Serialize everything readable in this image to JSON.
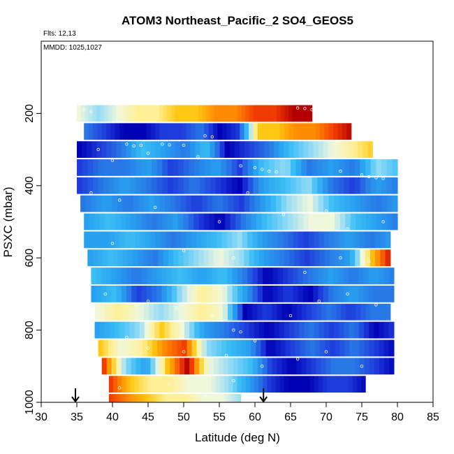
{
  "chart_data": {
    "type": "heatmap",
    "title": "ATOM3 Northeast_Pacific_2 SO4_GEOS5",
    "subtitle_flights": "Flts: 12,13",
    "subtitle_dates": "MMDD: 1025,1027",
    "xlabel": "Latitude (deg N)",
    "ylabel": "PSXC (mbar)",
    "xlim": [
      30,
      85
    ],
    "ylim": [
      1000,
      0
    ],
    "xticks": [
      "30",
      "35",
      "40",
      "45",
      "50",
      "55",
      "60",
      "65",
      "70",
      "75",
      "80",
      "85"
    ],
    "yticks": [
      "200",
      "400",
      "600",
      "800",
      "1000"
    ],
    "color_scale": [
      "#0000b4",
      "#1e3cdc",
      "#2878e6",
      "#28a0f0",
      "#3cbef5",
      "#96dcf5",
      "#f0f8dc",
      "#fff096",
      "#ffc814",
      "#ff8c00",
      "#f03c00",
      "#b40000"
    ],
    "markers": [
      {
        "lat": 34.8,
        "pressure": 1000
      },
      {
        "lat": 61.2,
        "pressure": 1000
      }
    ],
    "layers": [
      {
        "p": 200,
        "lat": [
          35.0,
          68.0
        ],
        "colors": [
          6,
          5,
          6,
          7,
          7,
          8,
          8,
          9,
          9,
          10,
          10,
          11,
          11
        ]
      },
      {
        "p": 250,
        "lat": [
          36.0,
          73.5
        ],
        "colors": [
          2,
          1,
          0,
          0,
          1,
          1,
          2,
          0,
          1,
          8,
          8,
          9,
          9,
          10,
          11
        ]
      },
      {
        "p": 300,
        "lat": [
          35.0,
          76.5
        ],
        "colors": [
          0,
          1,
          2,
          4,
          3,
          2,
          4,
          0,
          1,
          2,
          4,
          5,
          6,
          7,
          8
        ]
      },
      {
        "p": 350,
        "lat": [
          35.0,
          80.0
        ],
        "colors": [
          1,
          2,
          2,
          3,
          1,
          2,
          3,
          1,
          4,
          5,
          2,
          3,
          2,
          5,
          4
        ]
      },
      {
        "p": 400,
        "lat": [
          35.0,
          80.0
        ],
        "colors": [
          1,
          2,
          3,
          2,
          1,
          2,
          1,
          0,
          3,
          4,
          5,
          2,
          1,
          3,
          2
        ]
      },
      {
        "p": 450,
        "lat": [
          35.5,
          80.0
        ],
        "colors": [
          2,
          3,
          2,
          3,
          2,
          1,
          2,
          1,
          3,
          5,
          6,
          4,
          3,
          2,
          3
        ]
      },
      {
        "p": 500,
        "lat": [
          36.0,
          80.0
        ],
        "colors": [
          3,
          4,
          3,
          2,
          3,
          1,
          0,
          2,
          4,
          5,
          6,
          6,
          4,
          3,
          2
        ]
      },
      {
        "p": 550,
        "lat": [
          36.0,
          79.0
        ],
        "colors": [
          3,
          3,
          4,
          3,
          2,
          3,
          4,
          5,
          3,
          2,
          1,
          2,
          3,
          2,
          3
        ]
      },
      {
        "p": 600,
        "lat": [
          36.5,
          79.0
        ],
        "colors": [
          3,
          4,
          3,
          2,
          4,
          5,
          6,
          5,
          3,
          2,
          1,
          2,
          3,
          8,
          11
        ]
      },
      {
        "p": 650,
        "lat": [
          37.0,
          79.5
        ],
        "colors": [
          4,
          3,
          2,
          3,
          4,
          3,
          4,
          2,
          0,
          1,
          2,
          3,
          2,
          3,
          2
        ]
      },
      {
        "p": 700,
        "lat": [
          37.0,
          79.5
        ],
        "colors": [
          3,
          4,
          1,
          2,
          5,
          7,
          6,
          3,
          0,
          1,
          0,
          2,
          3,
          2,
          2
        ]
      },
      {
        "p": 750,
        "lat": [
          37.5,
          79.0
        ],
        "colors": [
          6,
          7,
          6,
          5,
          6,
          7,
          6,
          0,
          1,
          0,
          1,
          2,
          1,
          2,
          2
        ]
      },
      {
        "p": 800,
        "lat": [
          37.5,
          79.5
        ],
        "colors": [
          3,
          4,
          5,
          8,
          6,
          3,
          2,
          1,
          0,
          1,
          2,
          1,
          2,
          0,
          1
        ]
      },
      {
        "p": 850,
        "lat": [
          38.0,
          79.5
        ],
        "colors": [
          8,
          6,
          7,
          9,
          10,
          5,
          4,
          3,
          0,
          1,
          2,
          1,
          2,
          1,
          0
        ]
      },
      {
        "p": 900,
        "lat": [
          38.5,
          79.5
        ],
        "colors": [
          10,
          5,
          3,
          8,
          11,
          6,
          5,
          4,
          1,
          0,
          1,
          2,
          2,
          1,
          0
        ]
      },
      {
        "p": 950,
        "lat": [
          39.5,
          75.5
        ],
        "colors": [
          10,
          8,
          7,
          7,
          6,
          6,
          5,
          3,
          1,
          0,
          0,
          1,
          1,
          0
        ]
      },
      {
        "p": 1000,
        "lat": [
          39.5,
          58.0
        ],
        "colors": [
          10,
          9,
          8,
          7,
          7,
          6,
          6,
          5
        ]
      }
    ],
    "obs_points": [
      [
        36,
        190
      ],
      [
        37,
        195
      ],
      [
        42,
        285
      ],
      [
        43,
        290
      ],
      [
        44,
        288
      ],
      [
        47,
        285
      ],
      [
        48,
        287
      ],
      [
        50,
        288
      ],
      [
        53,
        262
      ],
      [
        54,
        265
      ],
      [
        66,
        185
      ],
      [
        67,
        186
      ],
      [
        68,
        190
      ],
      [
        69,
        185
      ],
      [
        70,
        188
      ],
      [
        38,
        300
      ],
      [
        40,
        330
      ],
      [
        45,
        310
      ],
      [
        52,
        320
      ],
      [
        58,
        345
      ],
      [
        60,
        350
      ],
      [
        61,
        355
      ],
      [
        62,
        360
      ],
      [
        63,
        362
      ],
      [
        72,
        360
      ],
      [
        75,
        370
      ],
      [
        76,
        375
      ],
      [
        77,
        378
      ],
      [
        78,
        380
      ],
      [
        37,
        420
      ],
      [
        41,
        440
      ],
      [
        46,
        460
      ],
      [
        55,
        500
      ],
      [
        59,
        420
      ],
      [
        64,
        480
      ],
      [
        70,
        470
      ],
      [
        73,
        520
      ],
      [
        78,
        500
      ],
      [
        40,
        560
      ],
      [
        50,
        580
      ],
      [
        57,
        600
      ],
      [
        67,
        640
      ],
      [
        72,
        600
      ],
      [
        76,
        610
      ],
      [
        39,
        700
      ],
      [
        45,
        720
      ],
      [
        49,
        740
      ],
      [
        54,
        760
      ],
      [
        57,
        800
      ],
      [
        58,
        805
      ],
      [
        60,
        830
      ],
      [
        65,
        760
      ],
      [
        69,
        720
      ],
      [
        73,
        700
      ],
      [
        77,
        730
      ],
      [
        42,
        820
      ],
      [
        45,
        850
      ],
      [
        50,
        860
      ],
      [
        56,
        870
      ],
      [
        61,
        900
      ],
      [
        66,
        880
      ],
      [
        70,
        860
      ],
      [
        75,
        900
      ],
      [
        41,
        960
      ],
      [
        48,
        950
      ],
      [
        53,
        980
      ],
      [
        57,
        940
      ]
    ]
  }
}
